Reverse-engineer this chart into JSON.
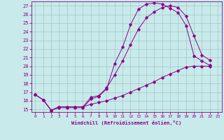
{
  "xlabel": "Windchill (Refroidissement éolien,°C)",
  "bg_color": "#c8eaea",
  "line_color": "#8b008b",
  "grid_color": "#a0c8c8",
  "xlim": [
    -0.5,
    23.5
  ],
  "ylim": [
    14.7,
    27.5
  ],
  "yticks": [
    15,
    16,
    17,
    18,
    19,
    20,
    21,
    22,
    23,
    24,
    25,
    26,
    27
  ],
  "xticks": [
    0,
    1,
    2,
    3,
    4,
    5,
    6,
    7,
    8,
    9,
    10,
    11,
    12,
    13,
    14,
    15,
    16,
    17,
    18,
    19,
    20,
    21,
    22,
    23
  ],
  "line1_x": [
    0,
    1,
    2,
    3,
    4,
    5,
    6,
    7,
    8,
    9,
    10,
    11,
    12,
    13,
    14,
    15,
    16,
    17,
    18,
    19,
    20,
    21,
    22
  ],
  "line1_y": [
    16.7,
    16.1,
    14.9,
    15.2,
    15.2,
    15.2,
    15.2,
    16.2,
    16.5,
    17.4,
    20.3,
    22.2,
    24.8,
    26.6,
    27.2,
    27.3,
    27.2,
    26.7,
    26.2,
    24.7,
    21.2,
    20.6,
    20.1
  ],
  "line2_x": [
    0,
    1,
    2,
    3,
    4,
    5,
    6,
    7,
    8,
    9,
    10,
    11,
    12,
    13,
    14,
    15,
    16,
    17,
    18,
    19,
    20,
    21,
    22
  ],
  "line2_y": [
    16.7,
    16.1,
    14.9,
    15.3,
    15.3,
    15.3,
    15.3,
    16.4,
    16.6,
    17.5,
    19.0,
    20.6,
    22.5,
    24.3,
    25.6,
    26.3,
    26.8,
    27.0,
    26.8,
    25.8,
    23.5,
    21.3,
    20.7
  ],
  "line3_x": [
    0,
    1,
    2,
    3,
    4,
    5,
    6,
    7,
    8,
    9,
    10,
    11,
    12,
    13,
    14,
    15,
    16,
    17,
    18,
    19,
    20,
    21,
    22
  ],
  "line3_y": [
    16.7,
    16.1,
    14.9,
    15.3,
    15.3,
    15.3,
    15.3,
    15.6,
    15.8,
    16.0,
    16.3,
    16.6,
    17.0,
    17.4,
    17.8,
    18.2,
    18.7,
    19.1,
    19.5,
    19.9,
    20.0,
    20.0,
    20.0
  ]
}
